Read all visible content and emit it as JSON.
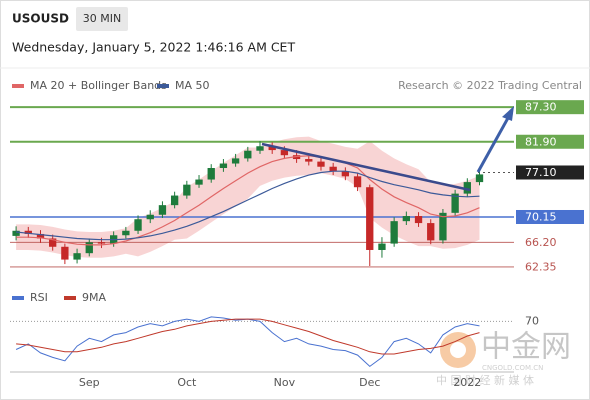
{
  "header": {
    "symbol": "USOUSD",
    "interval": "30 MIN",
    "timestamp": "Wednesday, January 5, 2022 1:46:16 AM CET"
  },
  "watermark": {
    "name": "中金网",
    "site": "CNGOLD.COM.CN",
    "slogan": "中 国 财 经 新 媒 体"
  },
  "chart_data": [
    {
      "type": "candlestick",
      "source": "Research © 2022 Trading Central",
      "categories": [
        null,
        null,
        null,
        null,
        null,
        null,
        "Sep",
        null,
        null,
        null,
        null,
        null,
        null,
        null,
        "Oct",
        null,
        null,
        null,
        null,
        null,
        null,
        null,
        "Nov",
        null,
        null,
        null,
        null,
        null,
        null,
        "Dec",
        null,
        null,
        null,
        null,
        null,
        null,
        null,
        "2022",
        null,
        null,
        null
      ],
      "open": [
        67.2,
        68.0,
        67.5,
        66.8,
        65.5,
        63.5,
        64.5,
        66.2,
        66.0,
        67.3,
        68.0,
        69.8,
        70.5,
        72.0,
        73.5,
        75.2,
        76.0,
        77.8,
        78.5,
        79.3,
        80.5,
        81.2,
        80.6,
        79.8,
        79.2,
        78.8,
        78.0,
        77.3,
        76.5,
        74.8,
        65.0,
        66.0,
        69.5,
        70.3,
        69.2,
        66.5,
        70.8,
        73.8,
        75.6,
        null,
        null
      ],
      "high": [
        68.7,
        68.6,
        68.1,
        67.4,
        66.0,
        65.2,
        66.8,
        66.9,
        67.9,
        68.6,
        70.4,
        71.2,
        72.6,
        74.1,
        75.8,
        76.7,
        78.4,
        79.2,
        80.0,
        81.1,
        82.0,
        81.8,
        81.2,
        80.6,
        80.0,
        79.4,
        78.6,
        77.9,
        77.0,
        75.2,
        67.0,
        70.1,
        71.0,
        70.9,
        69.8,
        71.4,
        74.4,
        76.2,
        77.4,
        null,
        null
      ],
      "low": [
        66.5,
        66.9,
        66.1,
        64.9,
        62.8,
        62.9,
        64.0,
        65.3,
        65.5,
        66.8,
        67.5,
        69.2,
        70.0,
        71.5,
        73.0,
        74.7,
        75.5,
        77.2,
        78.0,
        78.8,
        80.0,
        80.0,
        79.2,
        78.6,
        78.2,
        77.4,
        76.7,
        75.9,
        74.2,
        62.5,
        63.8,
        65.5,
        68.9,
        68.6,
        65.9,
        66.0,
        70.3,
        73.3,
        75.1,
        null,
        null
      ],
      "close": [
        68.0,
        67.5,
        66.8,
        65.5,
        63.5,
        64.5,
        66.2,
        66.0,
        67.3,
        68.0,
        69.8,
        70.5,
        72.0,
        73.5,
        75.2,
        76.0,
        77.8,
        78.5,
        79.3,
        80.5,
        81.2,
        80.6,
        79.8,
        79.2,
        78.8,
        78.0,
        77.3,
        76.5,
        74.8,
        65.0,
        66.0,
        69.5,
        70.3,
        69.2,
        66.5,
        70.8,
        73.8,
        75.6,
        76.8,
        null,
        null
      ],
      "up_color": "#1e7b3c",
      "down_color": "#c62828",
      "series": [
        {
          "name": "MA 20 + Bollinger Bands",
          "color": "#e06666",
          "band_color": "#f6c9c9",
          "values": [
            67.0,
            67.0,
            66.9,
            66.6,
            66.2,
            65.9,
            65.8,
            65.8,
            66.0,
            66.4,
            67.0,
            67.7,
            68.6,
            69.6,
            70.8,
            72.0,
            73.3,
            74.6,
            75.8,
            77.0,
            78.0,
            78.8,
            79.3,
            79.6,
            79.7,
            79.5,
            79.1,
            78.6,
            77.8,
            76.0,
            74.5,
            73.3,
            72.4,
            71.6,
            70.6,
            70.2,
            70.3,
            70.8,
            71.6,
            null,
            null
          ],
          "upper": [
            69.0,
            69.0,
            68.9,
            68.6,
            68.2,
            67.9,
            67.8,
            67.8,
            68.0,
            68.4,
            70.0,
            70.7,
            71.6,
            72.6,
            74.8,
            76.0,
            77.3,
            78.6,
            79.8,
            81.0,
            81.0,
            81.8,
            82.3,
            82.6,
            82.7,
            82.0,
            81.6,
            81.1,
            80.8,
            82.0,
            80.5,
            79.3,
            78.4,
            77.6,
            75.6,
            75.2,
            75.3,
            75.8,
            76.6,
            null,
            null
          ],
          "lower": [
            65.0,
            65.0,
            64.9,
            64.6,
            64.2,
            63.9,
            63.8,
            63.8,
            64.0,
            64.4,
            64.0,
            64.7,
            65.6,
            66.6,
            66.8,
            68.0,
            69.3,
            70.6,
            71.8,
            73.0,
            75.0,
            75.8,
            76.3,
            76.6,
            76.7,
            77.0,
            76.6,
            76.1,
            74.8,
            70.0,
            68.5,
            67.3,
            66.4,
            65.6,
            65.6,
            65.2,
            65.3,
            65.8,
            66.6,
            null,
            null
          ]
        },
        {
          "name": "MA 50",
          "color": "#3c5a99",
          "values": [
            67.8,
            67.6,
            67.4,
            67.2,
            67.0,
            66.8,
            66.7,
            66.6,
            66.6,
            66.7,
            66.9,
            67.2,
            67.6,
            68.1,
            68.7,
            69.4,
            70.2,
            71.0,
            71.9,
            72.8,
            73.7,
            74.6,
            75.4,
            76.1,
            76.7,
            77.1,
            77.3,
            77.3,
            77.0,
            76.3,
            75.7,
            75.2,
            74.8,
            74.4,
            73.9,
            73.6,
            73.4,
            73.3,
            73.4,
            null,
            null
          ]
        }
      ],
      "levels": [
        {
          "value": 87.3,
          "label": "87.30",
          "color": "#6aa84f",
          "style": "solid",
          "label_style": "box"
        },
        {
          "value": 81.9,
          "label": "81.90",
          "color": "#6aa84f",
          "style": "solid",
          "label_style": "box"
        },
        {
          "value": 77.1,
          "label": "77.10",
          "color": "#222222",
          "style": "dotted",
          "label_style": "box"
        },
        {
          "value": 70.15,
          "label": "70.15",
          "color": "#4a72d0",
          "style": "solid",
          "label_style": "box"
        },
        {
          "value": 66.2,
          "label": "66.20",
          "color": "#b85450",
          "style": "solid",
          "label_style": "text"
        },
        {
          "value": 62.35,
          "label": "62.35",
          "color": "#b85450",
          "style": "solid",
          "label_style": "text"
        }
      ],
      "ylim": [
        60,
        89.2
      ]
    },
    {
      "type": "line",
      "series": [
        {
          "name": "RSI",
          "color": "#4a72d0",
          "values": [
            45,
            50,
            42,
            38,
            35,
            48,
            55,
            52,
            58,
            60,
            65,
            68,
            66,
            70,
            72,
            70,
            74,
            73,
            71,
            72,
            70,
            60,
            52,
            55,
            50,
            48,
            45,
            44,
            40,
            30,
            38,
            52,
            55,
            50,
            42,
            58,
            65,
            68,
            66,
            null,
            null
          ]
        },
        {
          "name": "9MA",
          "color": "#c0392b",
          "values": [
            50,
            49,
            47,
            45,
            43,
            43,
            45,
            47,
            50,
            52,
            55,
            58,
            61,
            63,
            66,
            68,
            70,
            71,
            72,
            72,
            72,
            70,
            67,
            64,
            61,
            57,
            53,
            50,
            47,
            43,
            41,
            41,
            43,
            45,
            46,
            48,
            52,
            57,
            60,
            null,
            null
          ]
        }
      ],
      "ylim": [
        25,
        89
      ],
      "yticks": [
        70
      ]
    }
  ]
}
